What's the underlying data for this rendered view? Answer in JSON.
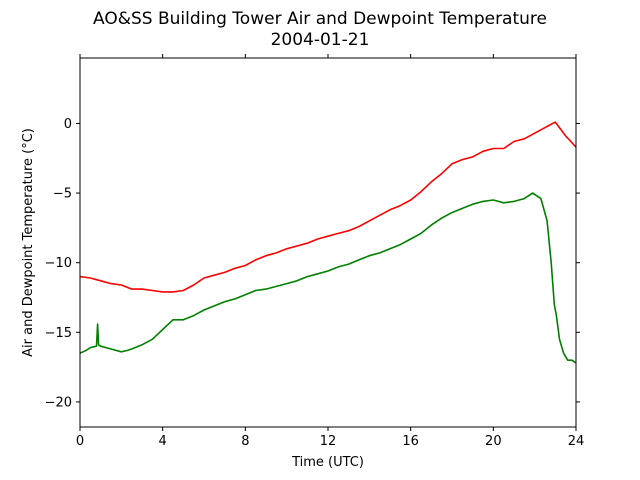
{
  "figure": {
    "title_line1": "AO&SS Building Tower Air and Dewpoint Temperature",
    "title_line2": "2004-01-21"
  },
  "chart_data": {
    "type": "line",
    "title": "AO&SS Building Tower Air and Dewpoint Temperature\n2004-01-21",
    "xlabel": "Time (UTC)",
    "ylabel": "Air and Dewpoint Temperature (°C)",
    "xlim": [
      0,
      24
    ],
    "ylim": [
      -21.8,
      4.7
    ],
    "xticks": [
      0,
      4,
      8,
      12,
      16,
      20,
      24
    ],
    "yticks": [
      -20,
      -15,
      -10,
      -5,
      0
    ],
    "grid": false,
    "legend": "none",
    "series": [
      {
        "color": "#ff0000",
        "x": [
          0,
          0.5,
          1,
          1.5,
          2,
          2.5,
          3,
          3.5,
          4,
          4.5,
          5,
          5.5,
          6,
          6.5,
          7,
          7.5,
          8,
          8.5,
          9,
          9.5,
          10,
          10.5,
          11,
          11.5,
          12,
          12.5,
          13,
          13.5,
          14,
          14.5,
          15,
          15.5,
          16,
          16.5,
          17,
          17.5,
          18,
          18.5,
          19,
          19.5,
          20,
          20.5,
          21,
          21.5,
          22,
          22.5,
          23,
          23.5,
          24
        ],
        "y": [
          -11.0,
          -11.1,
          -11.3,
          -11.5,
          -11.6,
          -11.9,
          -11.9,
          -12.0,
          -12.1,
          -12.1,
          -12.0,
          -11.6,
          -11.1,
          -10.9,
          -10.7,
          -10.4,
          -10.2,
          -9.8,
          -9.5,
          -9.3,
          -9.0,
          -8.8,
          -8.6,
          -8.3,
          -8.1,
          -7.9,
          -7.7,
          -7.4,
          -7.0,
          -6.6,
          -6.2,
          -5.9,
          -5.5,
          -4.9,
          -4.2,
          -3.6,
          -2.9,
          -2.6,
          -2.4,
          -2.0,
          -1.8,
          -1.8,
          -1.3,
          -1.1,
          -0.7,
          -0.3,
          0.1,
          -0.9,
          -1.7
        ]
      },
      {
        "color": "#008000",
        "x": [
          0,
          0.3,
          0.5,
          0.8,
          0.85,
          0.9,
          1,
          1.5,
          2,
          2.3,
          2.5,
          3,
          3.5,
          4,
          4.5,
          5,
          5.5,
          6,
          6.5,
          7,
          7.5,
          8,
          8.5,
          9,
          9.5,
          10,
          10.5,
          11,
          11.5,
          12,
          12.5,
          13,
          13.5,
          14,
          14.5,
          15,
          15.5,
          16,
          16.5,
          17,
          17.5,
          18,
          18.5,
          19,
          19.5,
          20,
          20.5,
          21,
          21.5,
          21.9,
          22.3,
          22.6,
          22.8,
          22.95,
          23.05,
          23.2,
          23.4,
          23.6,
          23.8,
          24
        ],
        "y": [
          -16.5,
          -16.3,
          -16.1,
          -16.0,
          -14.4,
          -15.9,
          -16.0,
          -16.2,
          -16.4,
          -16.3,
          -16.2,
          -15.9,
          -15.5,
          -14.8,
          -14.1,
          -14.1,
          -13.8,
          -13.4,
          -13.1,
          -12.8,
          -12.6,
          -12.3,
          -12.0,
          -11.9,
          -11.7,
          -11.5,
          -11.3,
          -11.0,
          -10.8,
          -10.6,
          -10.3,
          -10.1,
          -9.8,
          -9.5,
          -9.3,
          -9.0,
          -8.7,
          -8.3,
          -7.9,
          -7.3,
          -6.8,
          -6.4,
          -6.1,
          -5.8,
          -5.6,
          -5.5,
          -5.7,
          -5.6,
          -5.4,
          -5.0,
          -5.4,
          -7.0,
          -10.0,
          -13.0,
          -13.8,
          -15.5,
          -16.5,
          -17.0,
          -17.0,
          -17.2
        ]
      }
    ]
  }
}
